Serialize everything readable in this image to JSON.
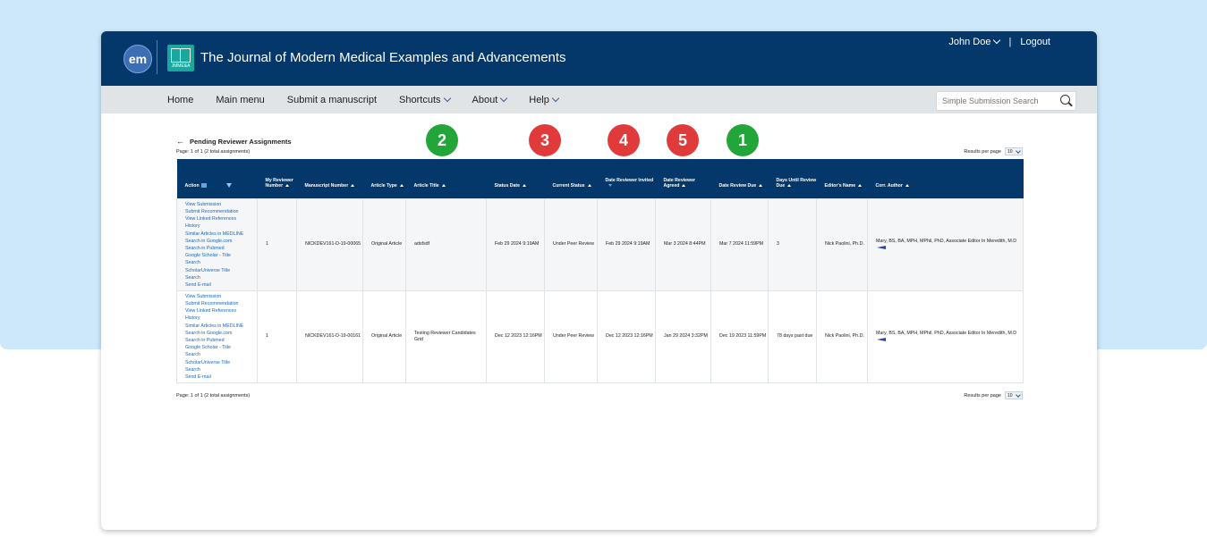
{
  "header": {
    "logo_text": "em",
    "journal_abbr": "JMME&A",
    "journal_title": "The Journal of Modern Medical Examples and Advancements",
    "user_name": "John Doe",
    "separator": "|",
    "logout_label": "Logout"
  },
  "nav": {
    "items": [
      {
        "label": "Home",
        "has_menu": false
      },
      {
        "label": "Main menu",
        "has_menu": false
      },
      {
        "label": "Submit a manuscript",
        "has_menu": false
      },
      {
        "label": "Shortcuts",
        "has_menu": true
      },
      {
        "label": "About",
        "has_menu": true
      },
      {
        "label": "Help",
        "has_menu": true
      }
    ],
    "search_placeholder": "Simple Submission Search"
  },
  "page": {
    "back_arrow": "←",
    "title": "Pending Reviewer Assignments",
    "page_info": "Page: 1 of 1 (2 total assignments)",
    "results_per_page_label": "Results per page",
    "results_per_page_value": "10"
  },
  "badges": [
    {
      "label": "2",
      "color": "#22a63a"
    },
    {
      "label": "3",
      "color": "#e03a3a"
    },
    {
      "label": "4",
      "color": "#e03a3a"
    },
    {
      "label": "5",
      "color": "#e03a3a"
    },
    {
      "label": "1",
      "color": "#22a63a"
    }
  ],
  "table": {
    "columns": [
      {
        "label": "Action",
        "sort": "none"
      },
      {
        "label": "My Reviewer Number",
        "sort": "up"
      },
      {
        "label": "Manuscript Number",
        "sort": "up"
      },
      {
        "label": "Article Type",
        "sort": "up"
      },
      {
        "label": "Article Title",
        "sort": "up"
      },
      {
        "label": "Status Date",
        "sort": "up"
      },
      {
        "label": "Current Status",
        "sort": "up"
      },
      {
        "label": "Date Reviewer Invited",
        "sort": "down-active"
      },
      {
        "label": "Date Reviewer Agreed",
        "sort": "up"
      },
      {
        "label": "Date Review Due",
        "sort": "up"
      },
      {
        "label": "Days Until Review Due",
        "sort": "up"
      },
      {
        "label": "Editor's Name",
        "sort": "up"
      },
      {
        "label": "Corr. Author",
        "sort": "up"
      }
    ],
    "action_links": [
      "View Submission",
      "Submit Recommendation",
      "View Linked References",
      "History",
      "Similar Articles in MEDLINE",
      "Search in Google.com",
      "Search in Pubmed",
      "Google Scholar - Title",
      "Search",
      "ScholarUniverse Title",
      "Search",
      "Send E-mail"
    ],
    "rows": [
      {
        "reviewer_number": "1",
        "manuscript_number": "NICKDEV161-D-19-00065",
        "article_type": "Original Article",
        "article_title": "adsfsdf",
        "status_date": "Feb 29 2024 9:19AM",
        "current_status": "Under Peer Review",
        "date_invited": "Feb 29 2024 9:19AM",
        "date_agreed": "Mar 3 2024 8:44PM",
        "date_due": "Mar 7 2024 11:59PM",
        "days_until_due": "3",
        "editor_name": "Nick Paolini, Ph.D.",
        "corr_author": "Mary, BS, BA, MPH, MPhil, PhD, Associate Editor In Meredith, M.D"
      },
      {
        "reviewer_number": "1",
        "manuscript_number": "NICKDEV161-D-19-00161",
        "article_type": "Original Article",
        "article_title": "Testing Reviewer Candidates Grid",
        "status_date": "Dec 12 2023 12:16PM",
        "current_status": "Under Peer Review",
        "date_invited": "Dec 12 2023 12:16PM",
        "date_agreed": "Jan 29 2024 3:32PM",
        "date_due": "Dec 19 2023 11:59PM",
        "days_until_due": "78 days past due",
        "editor_name": "Nick Paolini, Ph.D.",
        "corr_author": "Mary, BS, BA, MPH, MPhil, PhD, Associate Editor In Meredith, M.D"
      }
    ]
  }
}
